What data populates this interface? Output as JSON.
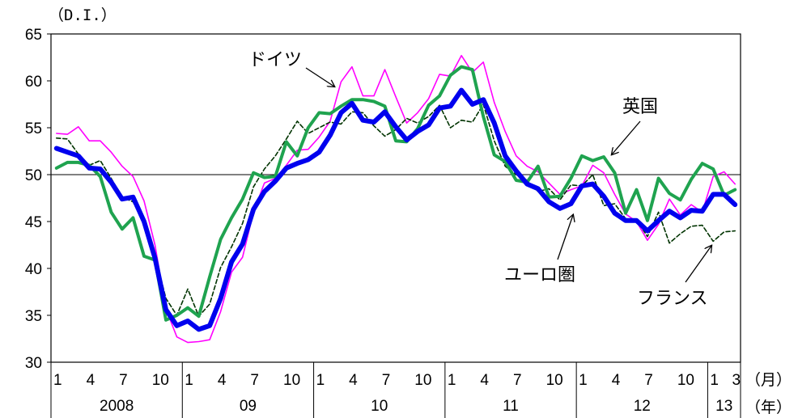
{
  "chart_data": {
    "type": "line",
    "y_unit_label": "（D.I.）",
    "ylim": [
      30,
      65
    ],
    "yticks": [
      30,
      35,
      40,
      45,
      50,
      55,
      60,
      65
    ],
    "reference_line": 50,
    "x_month_unit_label": "（月）",
    "x_year_unit_label": "（年）",
    "x_months": [
      "1",
      "2",
      "3",
      "4",
      "5",
      "6",
      "7",
      "8",
      "9",
      "10",
      "11",
      "12",
      "1",
      "2",
      "3",
      "4",
      "5",
      "6",
      "7",
      "8",
      "9",
      "10",
      "11",
      "12",
      "1",
      "2",
      "3",
      "4",
      "5",
      "6",
      "7",
      "8",
      "9",
      "10",
      "11",
      "12",
      "1",
      "2",
      "3",
      "4",
      "5",
      "6",
      "7",
      "8",
      "9",
      "10",
      "11",
      "12",
      "1",
      "2",
      "3",
      "4",
      "5",
      "6",
      "7",
      "8",
      "9",
      "10",
      "11",
      "12",
      "1",
      "2",
      "3"
    ],
    "x_tick_labels": [
      "1",
      "4",
      "7",
      "10",
      "1",
      "4",
      "7",
      "10",
      "1",
      "4",
      "7",
      "10",
      "1",
      "4",
      "7",
      "10",
      "1",
      "4",
      "7",
      "10",
      "1",
      "3"
    ],
    "year_labels": [
      "2008",
      "09",
      "10",
      "11",
      "12",
      "13"
    ],
    "grid": false,
    "annotations": [
      "ドイツ",
      "英国",
      "ユーロ圏",
      "フランス"
    ],
    "series": [
      {
        "name": "ドイツ",
        "color": "#ff00ff",
        "values": [
          54.4,
          54.3,
          55.1,
          53.6,
          53.6,
          52.4,
          50.9,
          49.8,
          47.2,
          42.5,
          35.7,
          32.7,
          32.1,
          32.2,
          32.4,
          35.4,
          39.6,
          41.2,
          46.0,
          49.1,
          49.6,
          51.0,
          52.6,
          52.7,
          54.0,
          55.7,
          59.9,
          61.5,
          58.4,
          58.4,
          61.2,
          58.3,
          55.5,
          56.6,
          58.1,
          60.7,
          60.5,
          62.7,
          60.9,
          62.0,
          57.7,
          54.6,
          52.0,
          50.9,
          50.3,
          49.1,
          47.9,
          48.4,
          48.8,
          51.0,
          50.2,
          47.9,
          45.8,
          45.0,
          43.0,
          44.7,
          47.4,
          45.7,
          46.8,
          46.0,
          49.8,
          50.3,
          49.0
        ]
      },
      {
        "name": "英国",
        "color": "#1fa34f",
        "values": [
          50.7,
          51.3,
          51.3,
          51.0,
          49.8,
          46.0,
          44.2,
          45.4,
          41.3,
          40.9,
          34.5,
          35.0,
          35.8,
          34.9,
          39.1,
          43.1,
          45.4,
          47.4,
          50.2,
          49.7,
          49.8,
          53.5,
          52.0,
          55.0,
          56.6,
          56.5,
          57.3,
          58.0,
          58.0,
          57.8,
          57.3,
          53.6,
          53.5,
          54.9,
          57.4,
          58.4,
          60.6,
          61.5,
          61.2,
          56.2,
          52.1,
          51.4,
          49.4,
          49.2,
          50.9,
          47.6,
          47.7,
          49.6,
          52.0,
          51.5,
          51.9,
          50.2,
          45.9,
          48.4,
          45.1,
          49.6,
          48.0,
          47.3,
          49.5,
          51.2,
          50.6,
          47.8,
          48.4
        ]
      },
      {
        "name": "ユーロ圏",
        "color": "#0000ee",
        "values": [
          52.8,
          52.4,
          52.0,
          50.7,
          50.6,
          49.2,
          47.4,
          47.6,
          45.0,
          41.1,
          35.6,
          33.9,
          34.4,
          33.5,
          33.9,
          36.8,
          40.7,
          42.6,
          46.3,
          48.2,
          49.3,
          50.7,
          51.2,
          51.6,
          52.4,
          54.2,
          56.6,
          57.6,
          55.8,
          55.6,
          56.7,
          55.1,
          53.7,
          54.6,
          55.3,
          57.1,
          57.3,
          59.0,
          57.5,
          58.0,
          55.5,
          52.0,
          50.4,
          49.0,
          48.5,
          47.1,
          46.4,
          46.9,
          48.8,
          49.0,
          47.7,
          45.9,
          45.1,
          45.1,
          44.0,
          45.1,
          46.1,
          45.4,
          46.2,
          46.1,
          47.9,
          47.9,
          46.8
        ]
      },
      {
        "name": "フランス",
        "color": "#003300",
        "dashed": true,
        "values": [
          53.9,
          53.8,
          52.2,
          51.0,
          51.5,
          49.6,
          47.6,
          47.1,
          44.8,
          41.4,
          36.8,
          35.0,
          37.8,
          34.9,
          36.2,
          40.1,
          42.3,
          44.8,
          48.7,
          50.6,
          52.0,
          53.8,
          55.7,
          54.4,
          55.0,
          55.6,
          55.4,
          56.7,
          56.6,
          55.2,
          54.1,
          54.8,
          56.0,
          55.5,
          56.2,
          57.4,
          55.0,
          55.8,
          55.6,
          57.5,
          53.6,
          50.9,
          50.0,
          49.4,
          48.2,
          48.5,
          47.3,
          48.9,
          48.8,
          50.0,
          46.7,
          46.9,
          45.3,
          45.2,
          43.4,
          46.0,
          42.7,
          43.7,
          44.5,
          44.6,
          42.9,
          43.9,
          44.0
        ]
      }
    ]
  }
}
